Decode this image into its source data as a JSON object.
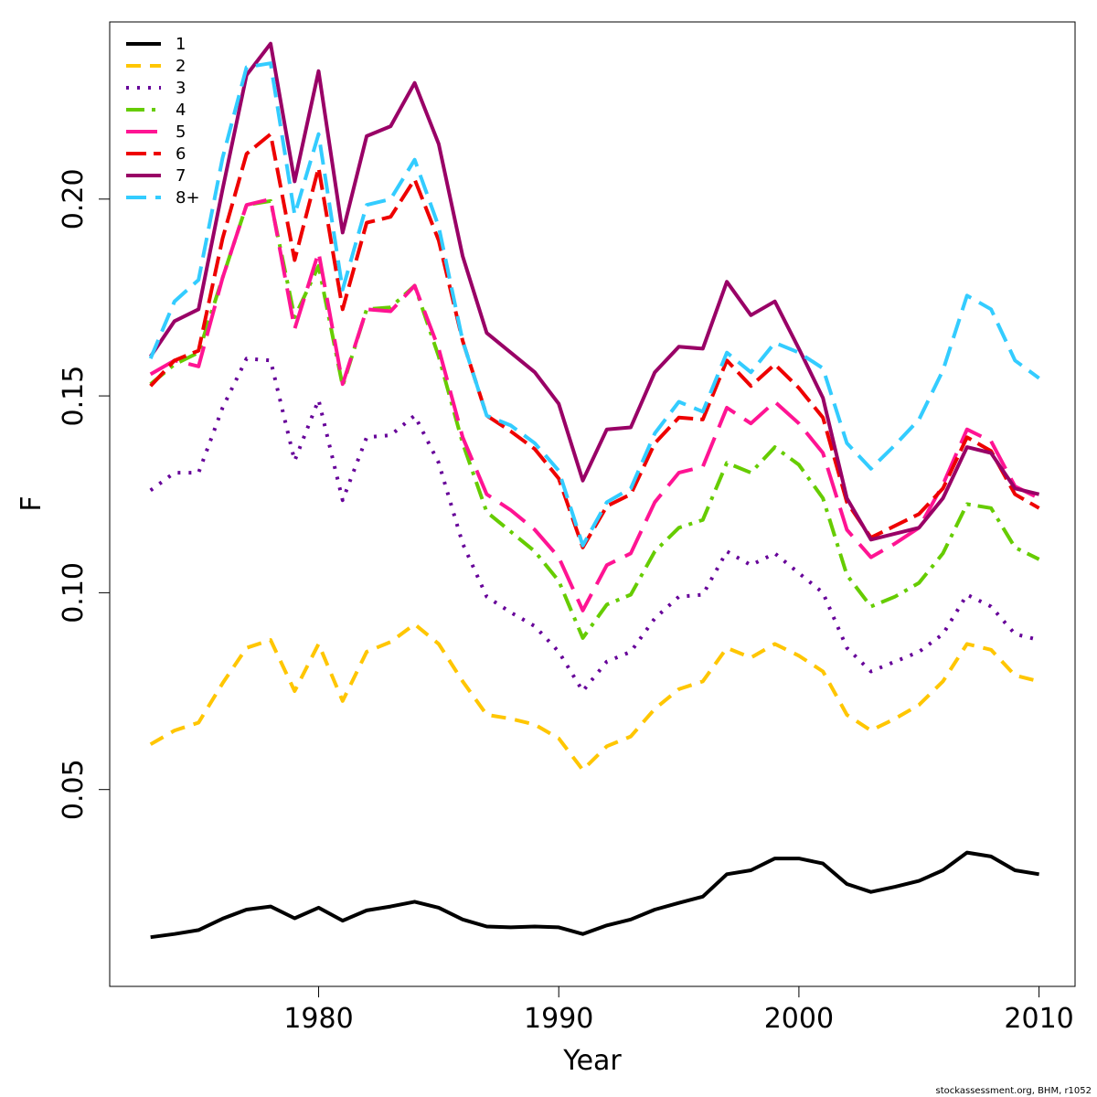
{
  "chart_data": {
    "type": "line",
    "xlabel": "Year",
    "ylabel": "F",
    "xlim": [
      1971.3,
      2011.5
    ],
    "ylim": [
      0.0,
      0.245
    ],
    "x_ticks": [
      1980,
      1990,
      2000,
      2010
    ],
    "y_ticks": [
      0.05,
      0.1,
      0.15,
      0.2
    ],
    "x_tick_labels": [
      "1980",
      "1990",
      "2000",
      "2010"
    ],
    "y_tick_labels": [
      "0.05",
      "0.10",
      "0.15",
      "0.20"
    ],
    "grid": false,
    "legend_position": "top-left",
    "x": [
      1973,
      1974,
      1975,
      1976,
      1977,
      1978,
      1979,
      1980,
      1981,
      1982,
      1983,
      1984,
      1985,
      1986,
      1987,
      1988,
      1989,
      1990,
      1991,
      1992,
      1993,
      1994,
      1995,
      1996,
      1997,
      1998,
      1999,
      2000,
      2001,
      2002,
      2003,
      2004,
      2005,
      2006,
      2007,
      2008,
      2009,
      2010
    ],
    "series": [
      {
        "name": "1",
        "color": "#000000",
        "dash": "solid",
        "values": [
          0.0125,
          0.0133,
          0.0143,
          0.0172,
          0.0195,
          0.0203,
          0.0173,
          0.02,
          0.0167,
          0.0193,
          0.0203,
          0.0215,
          0.02,
          0.017,
          0.0152,
          0.015,
          0.0152,
          0.015,
          0.0133,
          0.0155,
          0.017,
          0.0195,
          0.0212,
          0.0228,
          0.0285,
          0.0295,
          0.0325,
          0.0325,
          0.0312,
          0.026,
          0.024,
          0.0253,
          0.0268,
          0.0295,
          0.034,
          0.033,
          0.0295,
          0.0285
        ]
      },
      {
        "name": "2",
        "color": "#FFC600",
        "dash": "16,10",
        "values": [
          0.0615,
          0.065,
          0.067,
          0.077,
          0.086,
          0.088,
          0.075,
          0.087,
          0.0725,
          0.085,
          0.0875,
          0.092,
          0.087,
          0.0775,
          0.069,
          0.068,
          0.0665,
          0.063,
          0.055,
          0.061,
          0.0635,
          0.0705,
          0.0755,
          0.0775,
          0.086,
          0.0835,
          0.087,
          0.084,
          0.08,
          0.069,
          0.065,
          0.068,
          0.0715,
          0.0775,
          0.087,
          0.0855,
          0.079,
          0.0775
        ]
      },
      {
        "name": "3",
        "color": "#660099",
        "dash": "3,9",
        "values": [
          0.126,
          0.1305,
          0.1305,
          0.147,
          0.1595,
          0.159,
          0.1335,
          0.149,
          0.1235,
          0.1395,
          0.14,
          0.145,
          0.133,
          0.1125,
          0.099,
          0.095,
          0.0915,
          0.085,
          0.075,
          0.0825,
          0.085,
          0.0935,
          0.099,
          0.0995,
          0.1105,
          0.107,
          0.11,
          0.105,
          0.1,
          0.086,
          0.08,
          0.0825,
          0.085,
          0.0895,
          0.0995,
          0.0965,
          0.0895,
          0.088
        ]
      },
      {
        "name": "4",
        "color": "#66CC00",
        "dash": "20,8,4,8",
        "values": [
          0.153,
          0.158,
          0.161,
          0.18,
          0.1985,
          0.1995,
          0.17,
          0.183,
          0.1525,
          0.172,
          0.1725,
          0.178,
          0.16,
          0.138,
          0.1205,
          0.1155,
          0.1105,
          0.103,
          0.0885,
          0.097,
          0.0995,
          0.1105,
          0.1165,
          0.1185,
          0.133,
          0.1305,
          0.137,
          0.1325,
          0.124,
          0.1045,
          0.0965,
          0.099,
          0.1025,
          0.11,
          0.1225,
          0.1215,
          0.1115,
          0.1085
        ]
      },
      {
        "name": "5",
        "color": "#FF1493",
        "dash": "34,12",
        "values": [
          0.1555,
          0.159,
          0.1575,
          0.18,
          0.1985,
          0.2,
          0.167,
          0.1865,
          0.153,
          0.172,
          0.1715,
          0.178,
          0.162,
          0.1395,
          0.125,
          0.121,
          0.116,
          0.109,
          0.0955,
          0.107,
          0.11,
          0.123,
          0.1305,
          0.132,
          0.147,
          0.143,
          0.1485,
          0.143,
          0.1355,
          0.116,
          0.109,
          0.1125,
          0.1165,
          0.1275,
          0.1415,
          0.1385,
          0.127,
          0.124
        ]
      },
      {
        "name": "6",
        "color": "#EE0000",
        "dash": "22,8",
        "values": [
          0.1525,
          0.159,
          0.1615,
          0.19,
          0.2115,
          0.2165,
          0.1845,
          0.208,
          0.172,
          0.194,
          0.1955,
          0.205,
          0.1895,
          0.164,
          0.145,
          0.141,
          0.1365,
          0.129,
          0.1115,
          0.122,
          0.125,
          0.138,
          0.1445,
          0.144,
          0.159,
          0.1525,
          0.158,
          0.152,
          0.1445,
          0.123,
          0.114,
          0.117,
          0.12,
          0.1265,
          0.1395,
          0.136,
          0.125,
          0.1215
        ]
      },
      {
        "name": "7",
        "color": "#990066",
        "dash": "solid",
        "values": [
          0.16,
          0.169,
          0.172,
          0.2025,
          0.2315,
          0.2395,
          0.2045,
          0.2325,
          0.1915,
          0.216,
          0.2185,
          0.2295,
          0.214,
          0.1855,
          0.166,
          0.161,
          0.156,
          0.148,
          0.1285,
          0.1415,
          0.142,
          0.156,
          0.1625,
          0.162,
          0.179,
          0.1705,
          0.174,
          0.162,
          0.1495,
          0.124,
          0.1135,
          0.115,
          0.1165,
          0.124,
          0.137,
          0.1355,
          0.1265,
          0.125
        ]
      },
      {
        "name": "8+",
        "color": "#33CCFF",
        "dash": "22,10",
        "values": [
          0.1595,
          0.174,
          0.1795,
          0.2105,
          0.2335,
          0.2345,
          0.196,
          0.2165,
          0.177,
          0.1985,
          0.2,
          0.21,
          0.193,
          0.164,
          0.145,
          0.1425,
          0.138,
          0.131,
          0.112,
          0.123,
          0.1265,
          0.1405,
          0.1485,
          0.146,
          0.161,
          0.156,
          0.1635,
          0.161,
          0.157,
          0.138,
          0.1315,
          0.1375,
          0.144,
          0.1565,
          0.1755,
          0.172,
          0.159,
          0.1545
        ]
      }
    ]
  },
  "footer": {
    "credit": "stockassessment.org, BHM, r1052"
  }
}
